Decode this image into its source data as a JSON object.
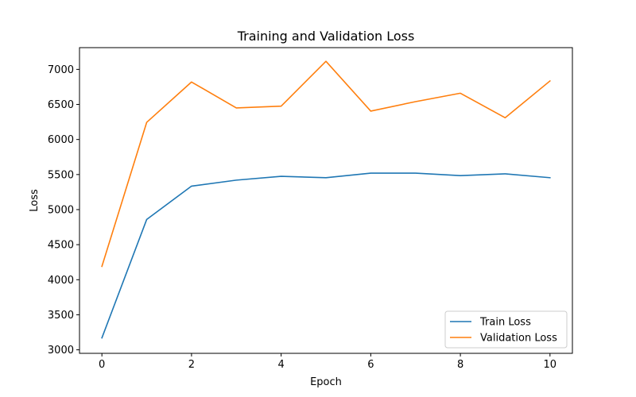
{
  "chart_data": {
    "type": "line",
    "title": "Training and Validation Loss",
    "xlabel": "Epoch",
    "ylabel": "Loss",
    "xlim": [
      -0.5,
      10.5
    ],
    "ylim": [
      2950,
      7310
    ],
    "xticks": [
      0,
      2,
      4,
      6,
      8,
      10
    ],
    "yticks": [
      3000,
      3500,
      4000,
      4500,
      5000,
      5500,
      6000,
      6500,
      7000
    ],
    "grid": false,
    "legend_position": "lower-right",
    "x": [
      0,
      1,
      2,
      3,
      4,
      5,
      6,
      7,
      8,
      9,
      10
    ],
    "series": [
      {
        "name": "Train Loss",
        "color": "#1f77b4",
        "values": [
          3170,
          4860,
          5335,
          5420,
          5475,
          5455,
          5520,
          5520,
          5485,
          5510,
          5455
        ]
      },
      {
        "name": "Validation Loss",
        "color": "#ff7f0e",
        "values": [
          4190,
          6245,
          6820,
          6450,
          6475,
          7115,
          6405,
          6540,
          6660,
          6310,
          6835
        ]
      }
    ]
  }
}
